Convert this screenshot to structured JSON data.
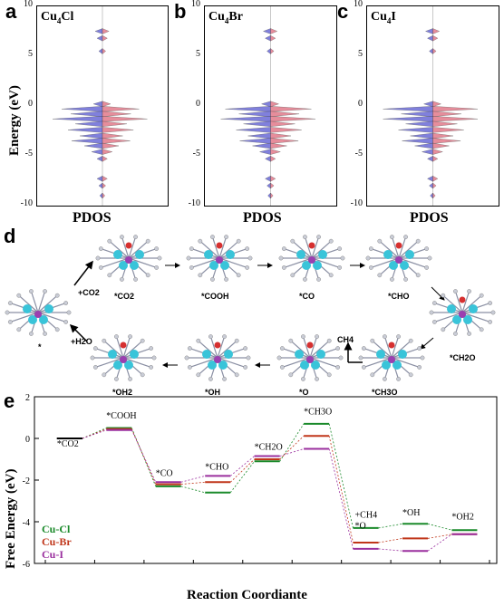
{
  "panels": {
    "a": {
      "letter": "a",
      "title": "Cu4Cl",
      "xlabel": "PDOS"
    },
    "b": {
      "letter": "b",
      "title": "Cu4Br",
      "xlabel": "PDOS"
    },
    "c": {
      "letter": "c",
      "title": "Cu4I",
      "xlabel": "PDOS"
    }
  },
  "pdos_ylabel": "Energy (eV)",
  "pdos_yticks": [
    "10",
    "5",
    "0",
    "-5",
    "-10"
  ],
  "panel_d": {
    "letter": "d",
    "states": [
      "*",
      "*CO2",
      "*COOH",
      "*CO",
      "*CHO",
      "*CH2O",
      "*CH3O",
      "*O",
      "*OH",
      "*OH2"
    ],
    "steps": [
      "+CO2",
      "CH4",
      "+H2O"
    ]
  },
  "chart_data": {
    "type": "line",
    "letter": "e",
    "xlabel": "Reaction Coordiante",
    "ylabel": "Free Energy (eV)",
    "ylim": [
      -6,
      2
    ],
    "yticks": [
      2,
      0,
      -2,
      -4,
      -6
    ],
    "categories": [
      "*CO2",
      "*COOH",
      "*CO",
      "*CHO",
      "*CH2O",
      "*CH3O",
      "+CH4 *O",
      "*OH",
      "*OH2"
    ],
    "series": [
      {
        "name": "Cu-Cl",
        "color": "#1a8a2a",
        "values": [
          0.0,
          0.5,
          -2.3,
          -2.6,
          -1.1,
          0.7,
          -4.3,
          -4.1,
          -4.4
        ]
      },
      {
        "name": "Cu-Br",
        "color": "#c0361a",
        "values": [
          0.0,
          0.45,
          -2.2,
          -2.1,
          -1.0,
          0.12,
          -5.0,
          -4.8,
          -4.6
        ]
      },
      {
        "name": "Cu-I",
        "color": "#9a2f9e",
        "values": [
          0.0,
          0.4,
          -2.1,
          -1.8,
          -0.85,
          -0.5,
          -5.3,
          -5.4,
          -4.6
        ]
      }
    ]
  }
}
